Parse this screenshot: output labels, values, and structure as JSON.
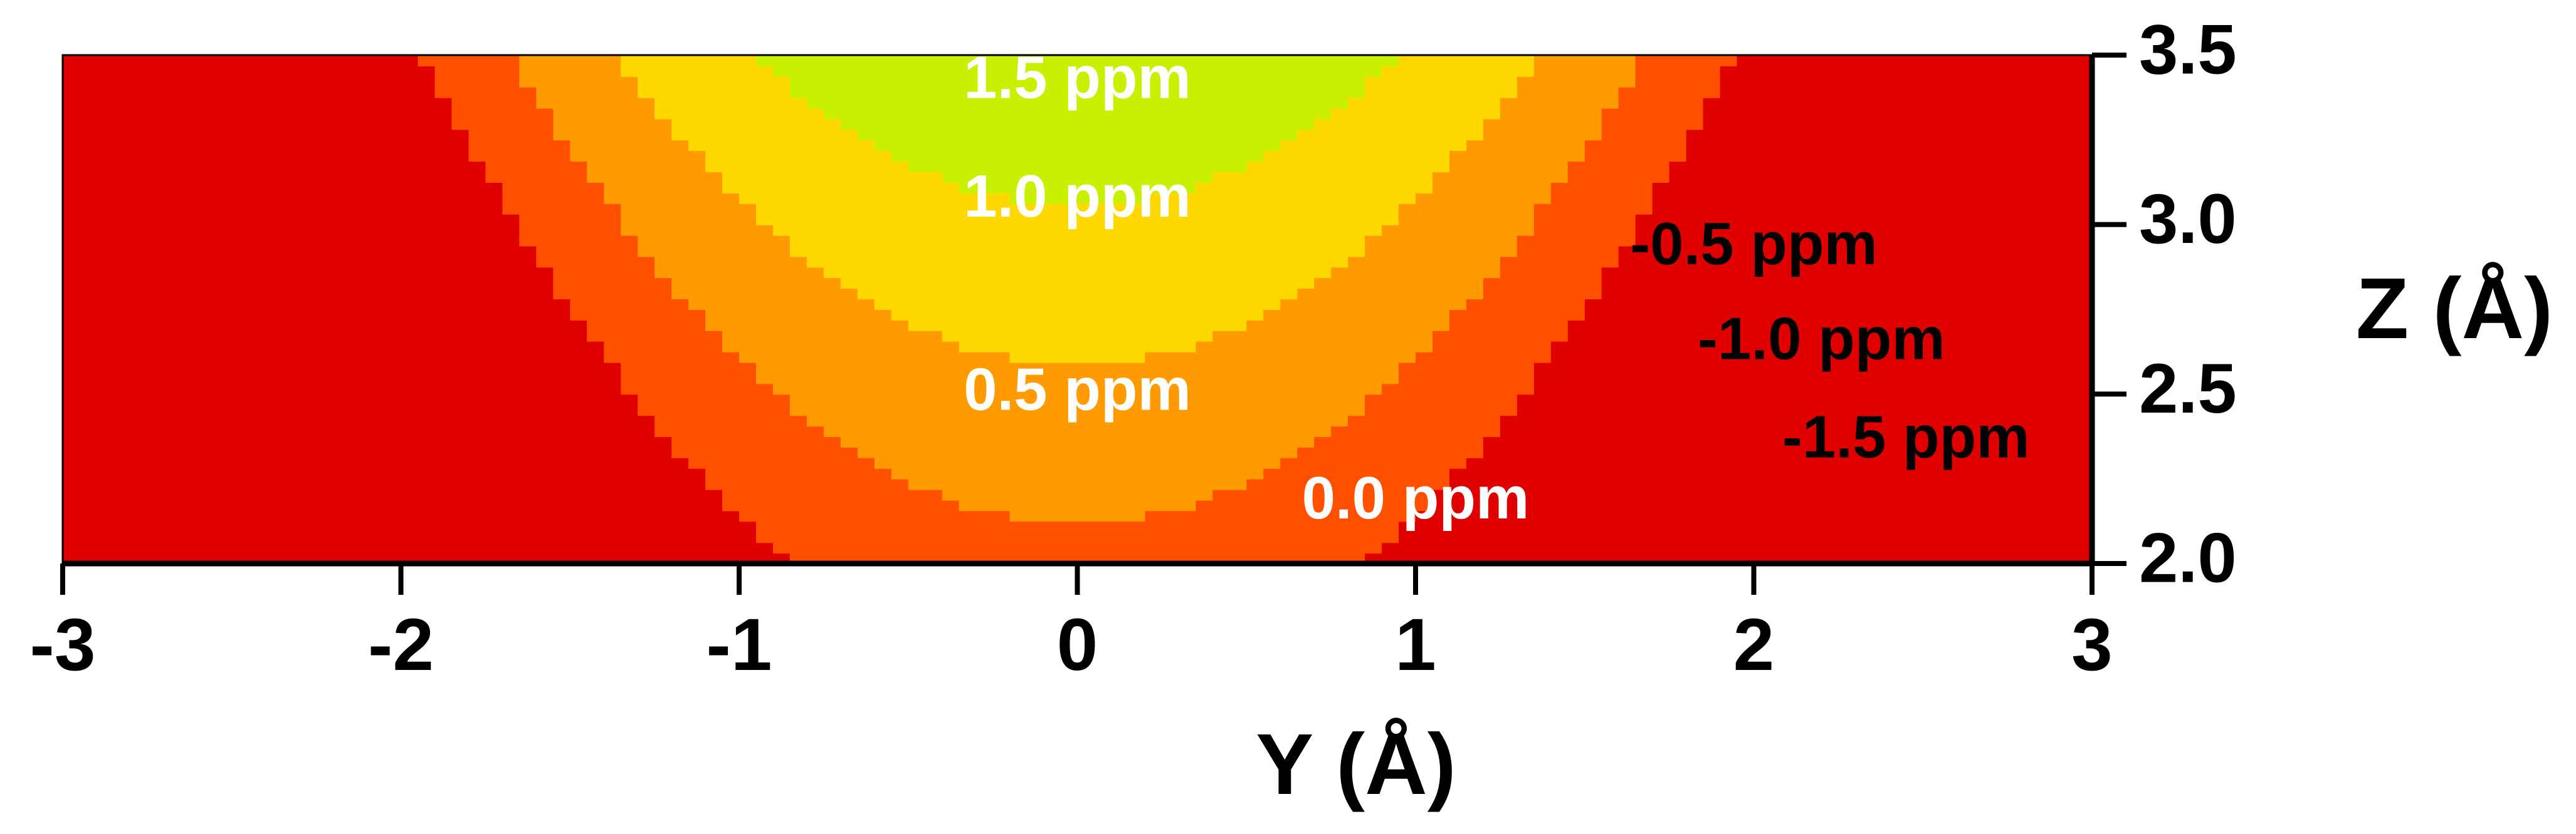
{
  "chart_data": {
    "type": "heatmap",
    "title": "",
    "xlabel": "Y (Å)",
    "ylabel": "Z (Å)",
    "xlim": [
      -3,
      3
    ],
    "ylim": [
      2.0,
      3.5
    ],
    "x_ticks": [
      -3,
      -2,
      -1,
      0,
      1,
      2,
      3
    ],
    "x_tick_labels": [
      "-3",
      "-2",
      "-1",
      "0",
      "1",
      "2",
      "3"
    ],
    "y_ticks": [
      2.0,
      2.5,
      3.0,
      3.5
    ],
    "y_tick_labels": [
      "2.0",
      "2.5",
      "3.0",
      "3.5"
    ],
    "contour_unit": "ppm",
    "colormap": [
      "#e00000",
      "#ff5000",
      "#ff9a00",
      "#ffd800",
      "#c8f000",
      "#00e000",
      "#00ffd0",
      "#00c8ff",
      "#0a7cff",
      "#0a34ff",
      "#7a00ff",
      "#a000ff"
    ],
    "contour_labels": [
      {
        "text": "1.5 ppm",
        "value": 1.5,
        "y": 0.0,
        "z": 3.42,
        "color": "#ffffff"
      },
      {
        "text": "1.0 ppm",
        "value": 1.0,
        "y": 0.0,
        "z": 3.07,
        "color": "#ffffff"
      },
      {
        "text": "0.5 ppm",
        "value": 0.5,
        "y": 0.0,
        "z": 2.5,
        "color": "#ffffff"
      },
      {
        "text": "0.0 ppm",
        "value": 0.0,
        "y": 1.0,
        "z": 2.18,
        "color": "#ffffff"
      },
      {
        "text": "-0.5 ppm",
        "value": -0.5,
        "y": 2.0,
        "z": 2.93,
        "color": "#000000"
      },
      {
        "text": "-1.0 ppm",
        "value": -1.0,
        "y": 2.2,
        "z": 2.65,
        "color": "#000000"
      },
      {
        "text": "-1.5 ppm",
        "value": -1.5,
        "y": 2.45,
        "z": 2.36,
        "color": "#000000"
      }
    ]
  }
}
